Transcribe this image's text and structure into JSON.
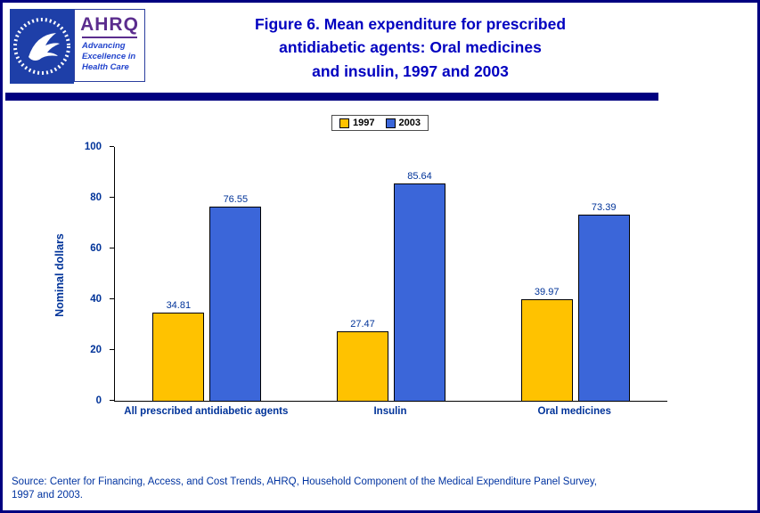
{
  "header": {
    "title_lines": [
      "Figure 6. Mean expenditure for prescribed",
      "antidiabetic agents: Oral medicines",
      "and insulin, 1997 and 2003"
    ],
    "ahrq_logo_text": "AHRQ",
    "ahrq_tagline_lines": [
      "Advancing",
      "Excellence in",
      "Health Care"
    ]
  },
  "colors": {
    "page_border": "#000080",
    "title_text": "#0000C0",
    "axis_text": "#003399",
    "bar_1997": "#FFC200",
    "bar_2003": "#3B66D9"
  },
  "chart_data": {
    "type": "bar",
    "categories": [
      "All prescribed antidiabetic agents",
      "Insulin",
      "Oral medicines"
    ],
    "series": [
      {
        "name": "1997",
        "color": "#FFC200",
        "values": [
          34.81,
          27.47,
          39.97
        ]
      },
      {
        "name": "2003",
        "color": "#3B66D9",
        "values": [
          76.55,
          85.64,
          73.39
        ]
      }
    ],
    "title": "Figure 6. Mean expenditure for prescribed antidiabetic agents: Oral medicines and insulin, 1997 and 2003",
    "xlabel": "",
    "ylabel": "Nominal dollars",
    "ylim": [
      0,
      100
    ],
    "y_ticks": [
      0,
      20,
      40,
      60,
      80,
      100
    ],
    "grid": false,
    "legend_position": "top",
    "value_labels": true
  },
  "footer": {
    "source_lines": [
      "Source: Center for Financing, Access, and Cost Trends, AHRQ, Household Component of the Medical Expenditure Panel Survey,",
      "1997 and 2003."
    ]
  }
}
